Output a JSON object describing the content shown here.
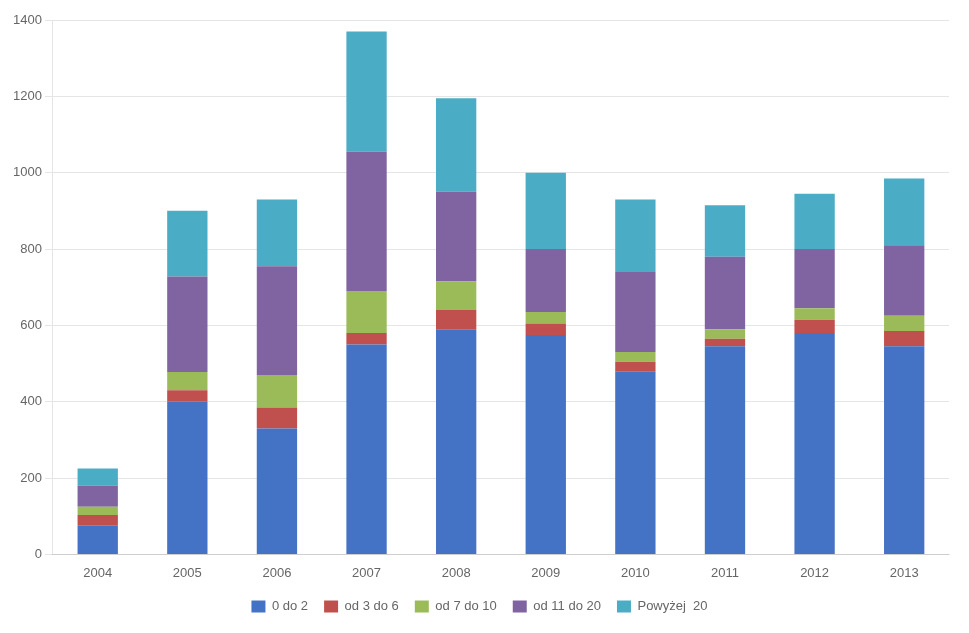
{
  "chart_data": {
    "type": "bar",
    "stacked": true,
    "categories": [
      "2004",
      "2005",
      "2006",
      "2007",
      "2008",
      "2009",
      "2010",
      "2011",
      "2012",
      "2013"
    ],
    "series": [
      {
        "name": "0 do 2",
        "color": "#4472C4",
        "values": [
          75,
          400,
          330,
          550,
          590,
          575,
          480,
          545,
          580,
          545
        ]
      },
      {
        "name": "od 3 do 6",
        "color": "#C0504D",
        "values": [
          28,
          30,
          55,
          30,
          50,
          30,
          25,
          20,
          35,
          40
        ]
      },
      {
        "name": "od 7 do 10",
        "color": "#9BBB59",
        "values": [
          22,
          48,
          85,
          110,
          75,
          30,
          25,
          25,
          30,
          40
        ]
      },
      {
        "name": "od 11 do 20",
        "color": "#8064A2",
        "values": [
          55,
          250,
          285,
          365,
          235,
          165,
          210,
          190,
          155,
          185
        ]
      },
      {
        "name": "Powyżej  20",
        "color": "#4BACC6",
        "values": [
          45,
          172,
          175,
          315,
          245,
          200,
          190,
          135,
          145,
          175
        ]
      }
    ],
    "ylim": [
      0,
      1400
    ],
    "yticks": [
      0,
      200,
      400,
      600,
      800,
      1000,
      1200,
      1400
    ],
    "grid": true,
    "legend": "bottom"
  }
}
